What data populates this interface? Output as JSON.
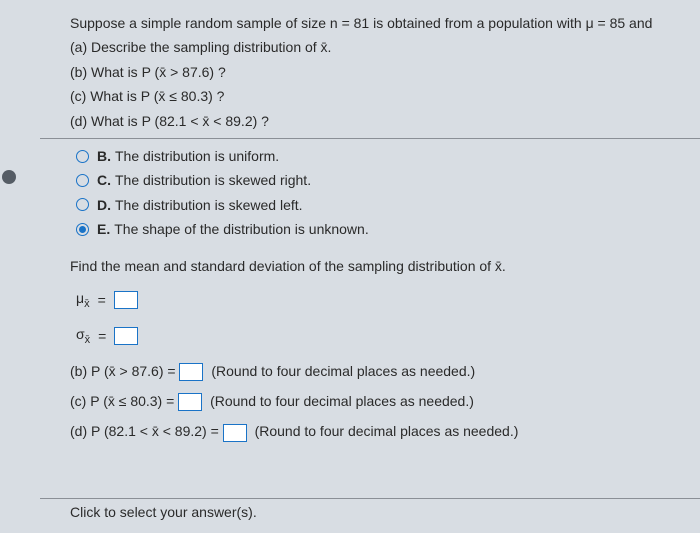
{
  "stem": {
    "line1": "Suppose a simple random sample of size n = 81 is obtained from a population with μ = 85 and",
    "a": "(a) Describe the sampling distribution of x̄.",
    "b": "(b) What is P (x̄ > 87.6) ?",
    "c": "(c) What is P (x̄ ≤ 80.3) ?",
    "d": "(d) What is P (82.1 < x̄ < 89.2) ?"
  },
  "choices": {
    "B": {
      "letter": "B.",
      "text": "The distribution is uniform."
    },
    "C": {
      "letter": "C.",
      "text": "The distribution is skewed right."
    },
    "D": {
      "letter": "D.",
      "text": "The distribution is skewed left."
    },
    "E": {
      "letter": "E.",
      "text": "The shape of the distribution is unknown."
    }
  },
  "selected": "E",
  "instruction": "Find the mean and standard deviation of the sampling distribution of x̄.",
  "params": {
    "mu_label": "μ",
    "sigma_label": "σ",
    "sub": "x̄",
    "eq": "="
  },
  "answers": {
    "b": {
      "prefix": "(b) P (x̄ > 87.6)  =",
      "hint": "(Round to four decimal places as needed.)"
    },
    "c": {
      "prefix": "(c) P (x̄ ≤ 80.3)  =",
      "hint": "(Round to four decimal places as needed.)"
    },
    "d": {
      "prefix": "(d) P (82.1 < x̄ < 89.2)  =",
      "hint": "(Round to four decimal places as needed.)"
    }
  },
  "footer": "Click to select your answer(s).",
  "colors": {
    "background": "#d8dde3",
    "text": "#2a2a2a",
    "accent": "#1a73c7",
    "rule": "#8a8f96"
  }
}
